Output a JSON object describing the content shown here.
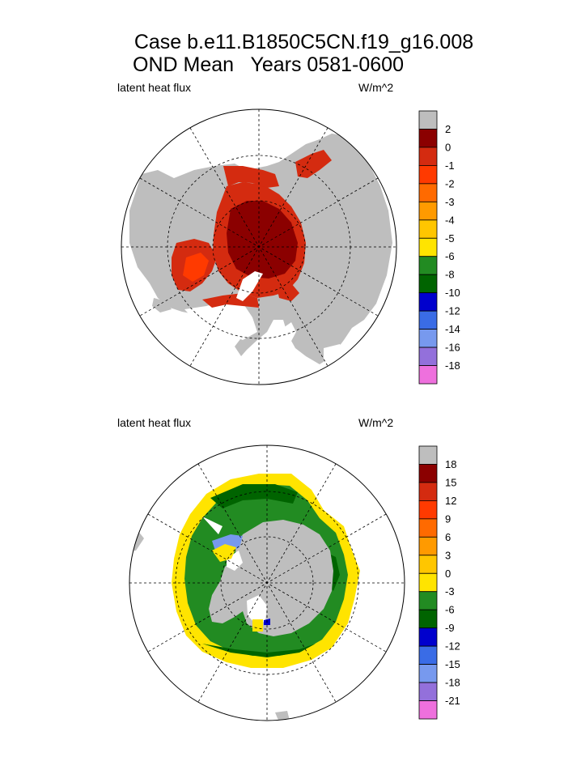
{
  "title": {
    "line1": "Case b.e11.B1850C5CN.f19_g16.008",
    "line2": "OND Mean   Years 0581-0600"
  },
  "colors": {
    "land": "#bebebe",
    "missing": "#ffffff",
    "scale": [
      "#bebebe",
      "#8b0000",
      "#d42b10",
      "#ff3a00",
      "#ff6a00",
      "#ff9a00",
      "#ffc600",
      "#ffe400",
      "#228b22",
      "#006400",
      "#0000cd",
      "#3a6ce6",
      "#7799ee",
      "#9370db",
      "#ee70dd"
    ]
  },
  "chart_data": [
    {
      "type": "map",
      "projection": "polar-stereographic-north",
      "variable": "latent heat flux",
      "units": "W/m^2",
      "colorbar_labels": [
        "2",
        "0",
        "-1",
        "-2",
        "-3",
        "-4",
        "-5",
        "-6",
        "-8",
        "-10",
        "-12",
        "-14",
        "-16",
        "-18"
      ]
    },
    {
      "type": "map",
      "projection": "polar-stereographic-south",
      "variable": "latent heat flux",
      "units": "W/m^2",
      "colorbar_labels": [
        "18",
        "15",
        "12",
        "9",
        "6",
        "3",
        "0",
        "-3",
        "-6",
        "-9",
        "-12",
        "-15",
        "-18",
        "-21"
      ]
    }
  ]
}
